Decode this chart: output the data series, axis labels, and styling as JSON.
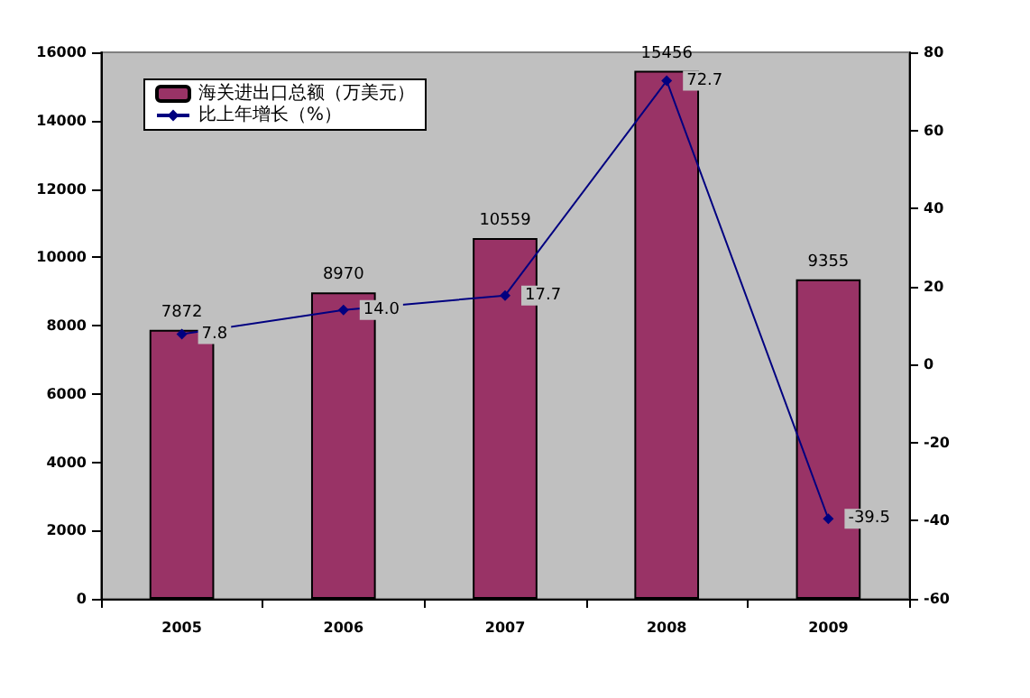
{
  "chart_data": {
    "type": "bar",
    "categories": [
      "2005",
      "2006",
      "2007",
      "2008",
      "2009"
    ],
    "series": [
      {
        "name": "海关进出口总额（万美元）",
        "color": "#993366",
        "values": [
          7872,
          8970,
          10559,
          15456,
          9355
        ]
      },
      {
        "name": "比上年增长（%）",
        "type": "line",
        "axis": "y2",
        "color": "#000080",
        "marker": "diamond",
        "values": [
          7.8,
          14.0,
          17.7,
          72.7,
          -39.5
        ],
        "value_labels": [
          "7.8",
          "14.0",
          "17.7",
          "72.7",
          "-39.5"
        ]
      }
    ],
    "ylim": [
      0,
      16000
    ],
    "yticks": [
      0,
      2000,
      4000,
      6000,
      8000,
      10000,
      12000,
      14000,
      16000
    ],
    "y2lim": [
      -60,
      80
    ],
    "y2ticks": [
      -60,
      -40,
      -20,
      0,
      20,
      40,
      60,
      80
    ],
    "data_labels": true,
    "legend": "top left",
    "grid": false
  }
}
